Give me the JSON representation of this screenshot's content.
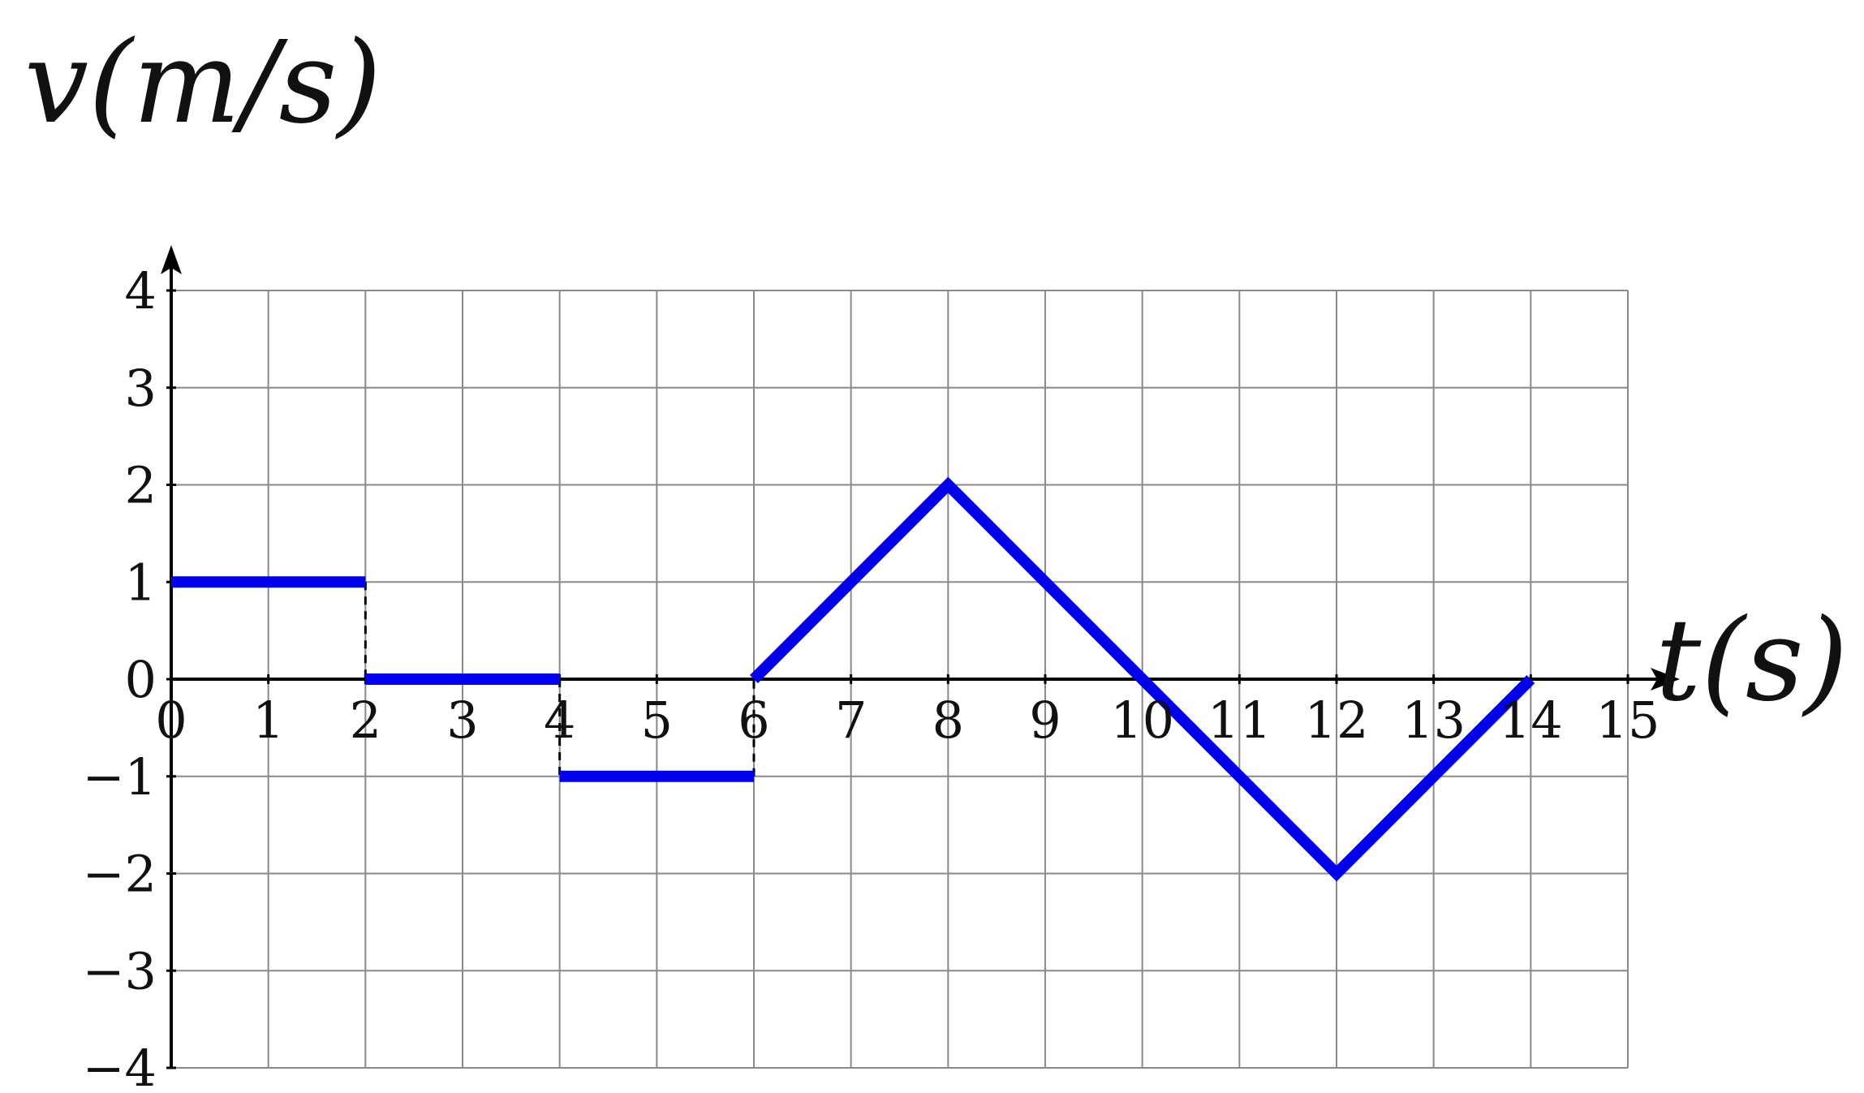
{
  "chart_data": {
    "type": "line",
    "title": "",
    "xlabel": "t(s)",
    "ylabel": "v(m/s)",
    "xlim": [
      0,
      15
    ],
    "ylim": [
      -4,
      4
    ],
    "x_ticks": [
      0,
      1,
      2,
      3,
      4,
      5,
      6,
      7,
      8,
      9,
      10,
      11,
      12,
      13,
      14,
      15
    ],
    "y_ticks": [
      4,
      3,
      2,
      1,
      0,
      -1,
      -2,
      -3,
      -4
    ],
    "y_tick_labels": [
      "4",
      "3",
      "2",
      "1",
      "0",
      "−1",
      "−2",
      "−3",
      "−4"
    ],
    "grid": true,
    "series": [
      {
        "color": "#0000ee",
        "segments": [
          [
            [
              0,
              1
            ],
            [
              2,
              1
            ]
          ],
          [
            [
              2,
              0
            ],
            [
              4,
              0
            ]
          ],
          [
            [
              4,
              -1
            ],
            [
              6,
              -1
            ]
          ],
          [
            [
              6,
              0
            ],
            [
              8,
              2
            ],
            [
              10,
              0
            ],
            [
              12,
              -2
            ],
            [
              14,
              0
            ]
          ]
        ]
      }
    ],
    "dashed_connectors": [
      [
        [
          2,
          1
        ],
        [
          2,
          0
        ]
      ],
      [
        [
          4,
          0
        ],
        [
          4,
          -1
        ]
      ],
      [
        [
          6,
          -1
        ],
        [
          6,
          0
        ]
      ]
    ]
  }
}
